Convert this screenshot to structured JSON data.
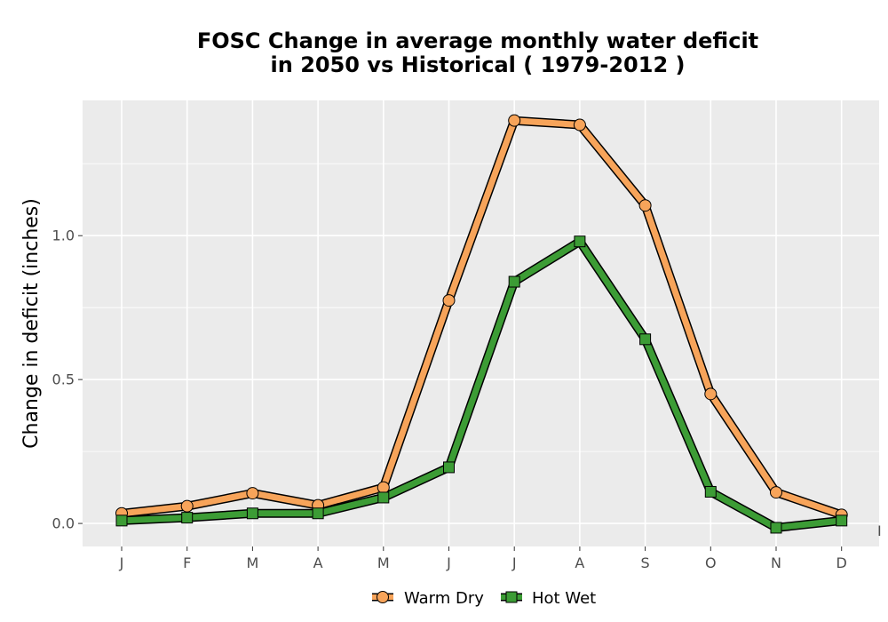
{
  "chart_data": {
    "type": "line",
    "title_lines": [
      "FOSC  Change in average monthly water deficit",
      "in 2050 vs Historical ( 1979-2012 )"
    ],
    "xlabel": "",
    "ylabel": "Change in deficit (inches)",
    "categories": [
      "J",
      "F",
      "M",
      "A",
      "M",
      "J",
      "J",
      "A",
      "S",
      "O",
      "N",
      "D"
    ],
    "ylim": [
      -0.08,
      1.47
    ],
    "yticks": [
      0.0,
      0.5,
      1.0
    ],
    "ytick_labels": [
      "0.0",
      "0.5",
      "1.0"
    ],
    "grid": true,
    "legend_position": "bottom",
    "stray_mark": "I",
    "series": [
      {
        "name": "Warm Dry",
        "values": [
          0.035,
          0.06,
          0.105,
          0.063,
          0.125,
          0.775,
          1.4,
          1.385,
          1.105,
          0.45,
          0.108,
          0.03
        ],
        "color": "#f7a45a",
        "marker": "circle"
      },
      {
        "name": "Hot Wet",
        "values": [
          0.01,
          0.02,
          0.035,
          0.035,
          0.09,
          0.195,
          0.84,
          0.98,
          0.64,
          0.11,
          -0.015,
          0.01
        ],
        "color": "#3c9c35",
        "marker": "square"
      }
    ]
  }
}
